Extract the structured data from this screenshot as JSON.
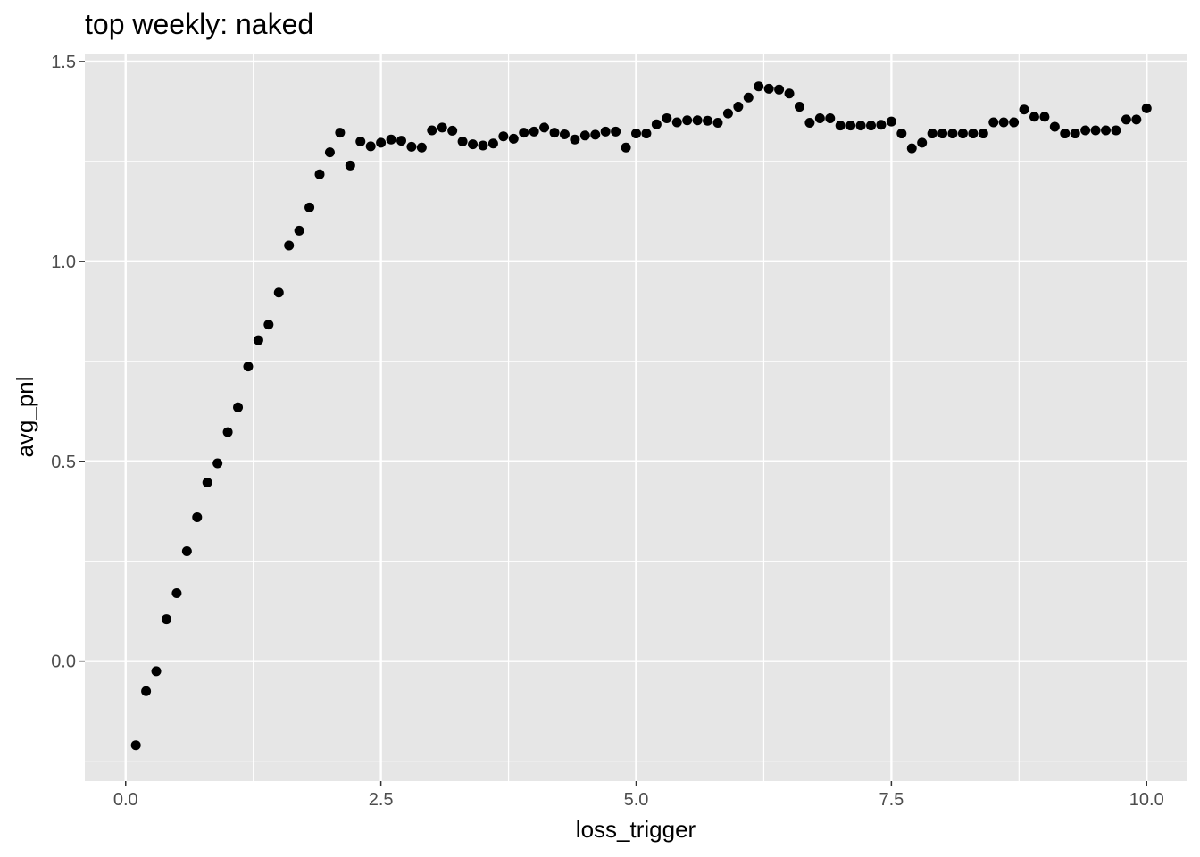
{
  "chart_data": {
    "type": "scatter",
    "title": "top weekly: naked",
    "xlabel": "loss_trigger",
    "ylabel": "avg_pnl",
    "xlim": [
      -0.4,
      10.4
    ],
    "ylim": [
      -0.3,
      1.52
    ],
    "x_ticks": [
      0.0,
      2.5,
      5.0,
      7.5,
      10.0
    ],
    "x_tick_labels": [
      "0.0",
      "2.5",
      "5.0",
      "7.5",
      "10.0"
    ],
    "y_ticks": [
      0.0,
      0.5,
      1.0,
      1.5
    ],
    "y_tick_labels": [
      "0.0",
      "0.5",
      "1.0",
      "1.5"
    ],
    "grid": true,
    "legend": "none",
    "colors": {
      "panel": "#e6e6e6",
      "grid": "#ffffff",
      "point": "#000000",
      "tick": "#333333"
    },
    "series": [
      {
        "x": [
          0.1,
          0.2,
          0.3,
          0.4,
          0.5,
          0.6,
          0.7,
          0.8,
          0.9,
          1.0,
          1.1,
          1.2,
          1.3,
          1.4,
          1.5,
          1.6,
          1.7,
          1.8,
          1.9,
          2.0,
          2.1,
          2.2,
          2.3,
          2.4,
          2.5,
          2.6,
          2.7,
          2.8,
          2.9,
          3.0,
          3.1,
          3.2,
          3.3,
          3.4,
          3.5,
          3.6,
          3.7,
          3.8,
          3.9,
          4.0,
          4.1,
          4.2,
          4.3,
          4.4,
          4.5,
          4.6,
          4.7,
          4.8,
          4.9,
          5.0,
          5.1,
          5.2,
          5.3,
          5.4,
          5.5,
          5.6,
          5.7,
          5.8,
          5.9,
          6.0,
          6.1,
          6.2,
          6.3,
          6.4,
          6.5,
          6.6,
          6.7,
          6.8,
          6.9,
          7.0,
          7.1,
          7.2,
          7.3,
          7.4,
          7.5,
          7.6,
          7.7,
          7.8,
          7.9,
          8.0,
          8.1,
          8.2,
          8.3,
          8.4,
          8.5,
          8.6,
          8.7,
          8.8,
          8.9,
          9.0,
          9.1,
          9.2,
          9.3,
          9.4,
          9.5,
          9.6,
          9.7,
          9.8,
          9.9,
          10.0
        ],
        "y": [
          -0.21,
          -0.075,
          -0.025,
          0.105,
          0.17,
          0.275,
          0.36,
          0.447,
          0.495,
          0.573,
          0.635,
          0.737,
          0.803,
          0.842,
          0.922,
          1.04,
          1.077,
          1.135,
          1.218,
          1.273,
          1.322,
          1.24,
          1.3,
          1.288,
          1.297,
          1.305,
          1.302,
          1.287,
          1.285,
          1.328,
          1.335,
          1.327,
          1.3,
          1.293,
          1.29,
          1.295,
          1.313,
          1.307,
          1.322,
          1.325,
          1.335,
          1.322,
          1.318,
          1.305,
          1.315,
          1.317,
          1.325,
          1.325,
          1.285,
          1.32,
          1.32,
          1.343,
          1.358,
          1.348,
          1.353,
          1.353,
          1.352,
          1.347,
          1.37,
          1.387,
          1.41,
          1.438,
          1.432,
          1.43,
          1.42,
          1.387,
          1.347,
          1.358,
          1.358,
          1.34,
          1.34,
          1.34,
          1.34,
          1.342,
          1.35,
          1.32,
          1.283,
          1.297,
          1.32,
          1.32,
          1.32,
          1.32,
          1.32,
          1.32,
          1.348,
          1.348,
          1.348,
          1.38,
          1.362,
          1.362,
          1.337,
          1.32,
          1.32,
          1.328,
          1.328,
          1.328,
          1.328,
          1.355,
          1.355,
          1.383
        ]
      }
    ]
  }
}
